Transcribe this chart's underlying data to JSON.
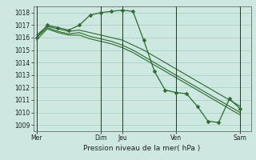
{
  "background_color": "#cce8e0",
  "grid_color": "#aaccc4",
  "line_color": "#2d6b2d",
  "vline_color": "#1a3a1a",
  "xlabel_text": "Pression niveau de la mer( hPa )",
  "ylim_min": 1008.5,
  "ylim_max": 1018.5,
  "yticks": [
    1009,
    1010,
    1011,
    1012,
    1013,
    1014,
    1015,
    1016,
    1017,
    1018
  ],
  "xtick_labels": [
    "Mer",
    "Dim",
    "Jeu",
    "Ven",
    "Sam"
  ],
  "xtick_positions": [
    0,
    6,
    8,
    13,
    19
  ],
  "vline_positions": [
    0,
    6,
    8,
    13,
    19
  ],
  "xlim_min": -0.3,
  "xlim_max": 20.0,
  "series_main": [
    1016.0,
    1017.0,
    1016.8,
    1016.6,
    1017.0,
    1017.8,
    1018.0,
    1018.1,
    1018.2,
    1018.1,
    1015.8,
    1013.3,
    1011.8,
    1011.6,
    1011.5,
    1010.5,
    1009.3,
    1009.2,
    1011.1,
    1010.3
  ],
  "series_bg": [
    [
      1016.2,
      1016.9,
      1016.7,
      1016.5,
      1016.6,
      1016.4,
      1016.2,
      1016.0,
      1015.8,
      1015.4,
      1015.0,
      1014.5,
      1014.0,
      1013.5,
      1013.0,
      1012.5,
      1012.0,
      1011.5,
      1011.0,
      1010.5
    ],
    [
      1016.0,
      1016.8,
      1016.5,
      1016.3,
      1016.4,
      1016.1,
      1015.9,
      1015.7,
      1015.4,
      1015.0,
      1014.5,
      1014.0,
      1013.5,
      1013.0,
      1012.5,
      1012.0,
      1011.5,
      1011.0,
      1010.5,
      1010.0
    ],
    [
      1015.8,
      1016.7,
      1016.4,
      1016.2,
      1016.2,
      1015.9,
      1015.7,
      1015.5,
      1015.2,
      1014.8,
      1014.3,
      1013.8,
      1013.3,
      1012.8,
      1012.3,
      1011.8,
      1011.3,
      1010.8,
      1010.3,
      1009.8
    ]
  ],
  "marker_style": "D",
  "marker_size": 2.5,
  "linewidth_main": 0.9,
  "linewidth_bg": 0.8,
  "tick_fontsize": 5.5,
  "xlabel_fontsize": 6.5
}
